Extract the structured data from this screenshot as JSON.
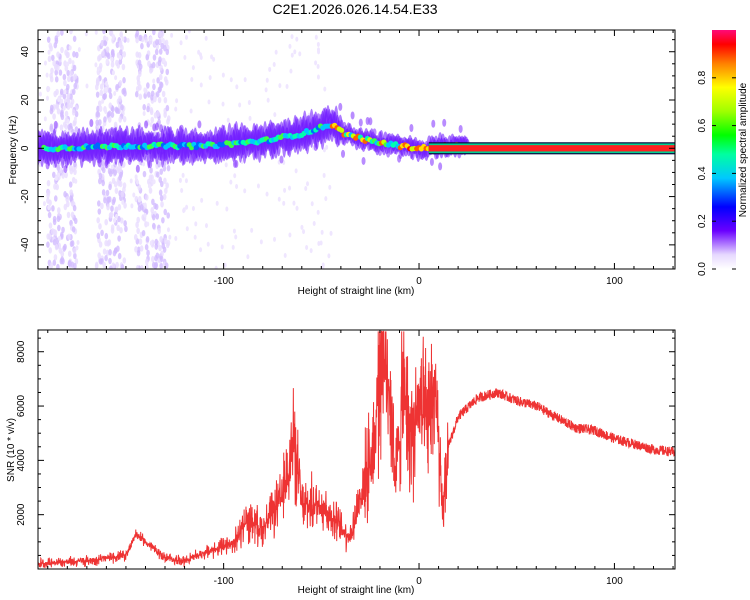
{
  "chart_data": [
    {
      "type": "heatmap",
      "title": "C2E1.2026.026.14.54.E33",
      "xlabel": "Height of straight line (km)",
      "ylabel": "Frequency (Hz)",
      "xlim": [
        -195,
        131
      ],
      "ylim": [
        -50,
        49
      ],
      "xticks": [
        -100,
        0,
        100
      ],
      "yticks": [
        -40,
        -20,
        0,
        20,
        40
      ],
      "colorbar": {
        "label": "Normalized spectral amplitude",
        "range": [
          0,
          1
        ],
        "ticks": [
          "0.0",
          "0.2",
          "0.4",
          "0.6",
          "0.8"
        ]
      },
      "ridge": {
        "description_points_x_km": [
          -190,
          -150,
          -110,
          -80,
          -60,
          -45,
          -38,
          -25,
          -10,
          0,
          10,
          131
        ],
        "center_freq_hz": [
          0,
          1,
          1,
          3,
          6,
          10,
          6,
          3,
          1,
          0,
          1,
          1
        ]
      }
    },
    {
      "type": "line",
      "xlabel": "Height of straight line (km)",
      "ylabel": "SNR (10 * v/v)",
      "xlim": [
        -195,
        131
      ],
      "ylim": [
        0,
        8800
      ],
      "xticks": [
        -100,
        0,
        100
      ],
      "yticks": [
        2000,
        4000,
        6000,
        8000
      ],
      "color": "#ee3333",
      "x": [
        -195,
        -170,
        -150,
        -145,
        -130,
        -120,
        -110,
        -95,
        -88,
        -80,
        -70,
        -64,
        -60,
        -50,
        -40,
        -35,
        -30,
        -25,
        -22,
        -20,
        -15,
        -12,
        -8,
        -5,
        0,
        5,
        8,
        10,
        12,
        15,
        20,
        30,
        40,
        50,
        60,
        70,
        80,
        90,
        100,
        110,
        120,
        131
      ],
      "y": [
        200,
        300,
        500,
        1300,
        400,
        300,
        600,
        900,
        1800,
        1500,
        2600,
        4800,
        2300,
        2400,
        1500,
        1200,
        2700,
        4000,
        5300,
        8600,
        6800,
        3300,
        6400,
        5000,
        5800,
        5200,
        7000,
        4400,
        2000,
        4500,
        5600,
        6300,
        6500,
        6200,
        6000,
        5600,
        5200,
        5100,
        4800,
        4600,
        4400,
        4300
      ]
    }
  ]
}
